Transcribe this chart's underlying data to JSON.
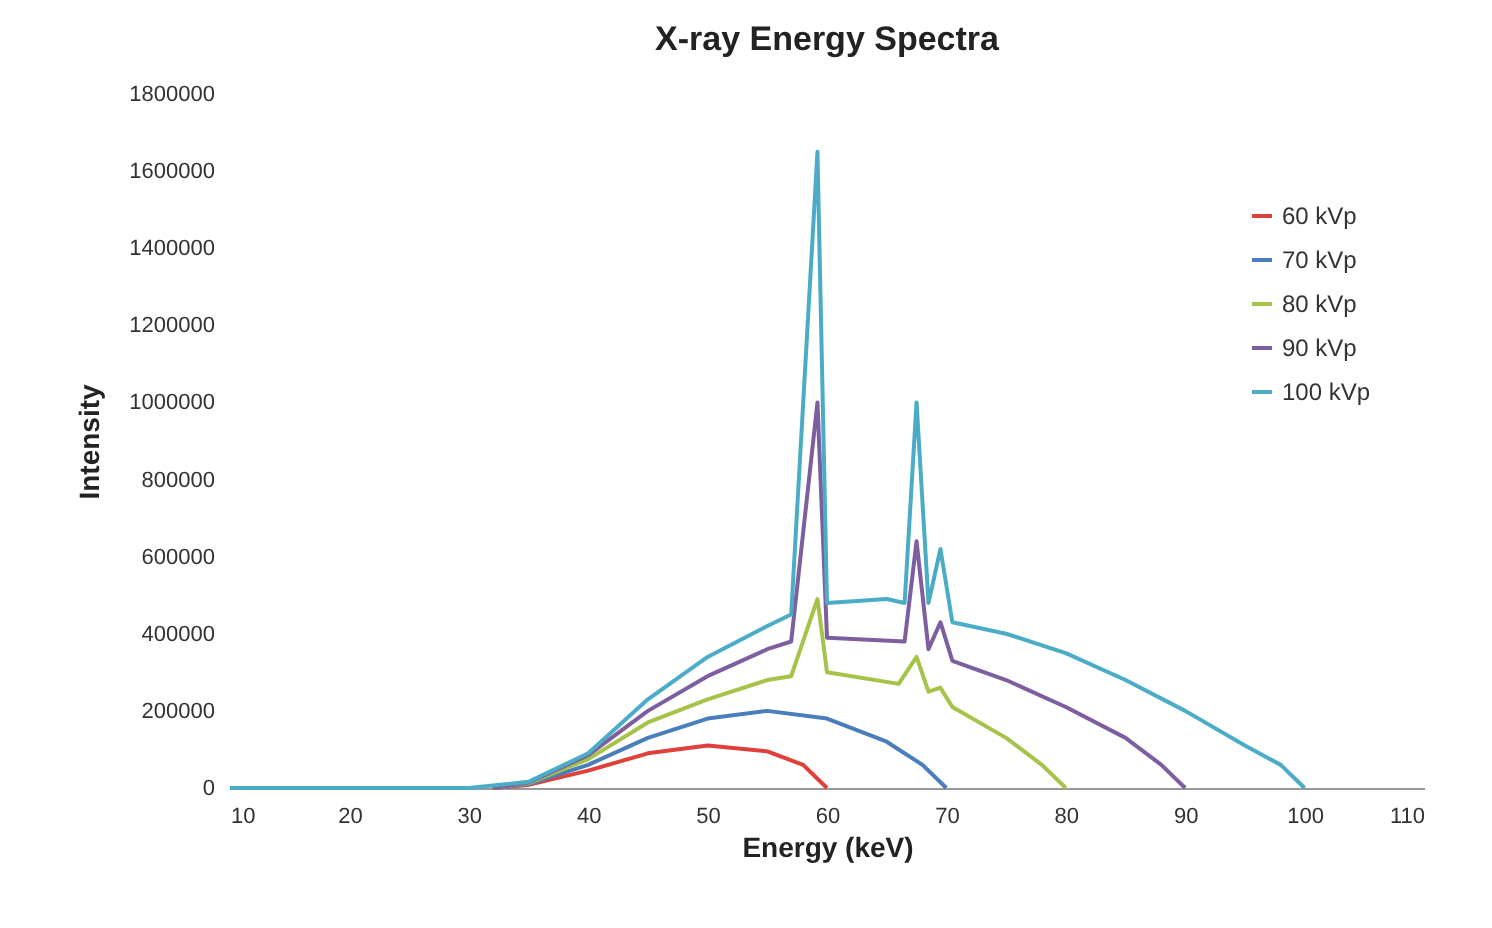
{
  "chart_data": {
    "type": "line",
    "title": "X-ray Energy Spectra",
    "xlabel": "Energy (keV)",
    "ylabel": "Intensity",
    "xlim": [
      10,
      110
    ],
    "xticks": [
      10,
      20,
      30,
      40,
      50,
      60,
      70,
      80,
      90,
      100,
      110
    ],
    "ylim": [
      0,
      1800000
    ],
    "yticks": [
      0,
      200000,
      400000,
      600000,
      800000,
      1000000,
      1200000,
      1400000,
      1600000,
      1800000
    ],
    "grid": false,
    "legend": "right",
    "marker": "none",
    "line_style": "solid",
    "series": [
      {
        "name": "60 kVp",
        "color": "#e0403a",
        "x": [
          32,
          35,
          40,
          45,
          50,
          55,
          58,
          60
        ],
        "values": [
          0,
          8000,
          45000,
          90000,
          110000,
          95000,
          60000,
          0
        ]
      },
      {
        "name": "70 kVp",
        "color": "#4a7ebb",
        "x": [
          32,
          35,
          40,
          45,
          50,
          55,
          60,
          65,
          68,
          70
        ],
        "values": [
          0,
          10000,
          60000,
          130000,
          180000,
          200000,
          180000,
          120000,
          60000,
          0
        ]
      },
      {
        "name": "80 kVp",
        "color": "#a5c249",
        "x": [
          32,
          35,
          40,
          45,
          50,
          55,
          57,
          59.2,
          60,
          66,
          67.5,
          68.5,
          69.5,
          70.5,
          75,
          78,
          80
        ],
        "values": [
          0,
          12000,
          75000,
          170000,
          230000,
          280000,
          290000,
          490000,
          300000,
          270000,
          340000,
          250000,
          260000,
          210000,
          130000,
          60000,
          0
        ]
      },
      {
        "name": "90 kVp",
        "color": "#7d5fa0",
        "x": [
          32,
          35,
          40,
          45,
          50,
          55,
          57,
          59.2,
          60,
          66.5,
          67.5,
          68.5,
          69.5,
          70.5,
          75,
          80,
          85,
          88,
          90
        ],
        "values": [
          0,
          14000,
          85000,
          200000,
          290000,
          360000,
          380000,
          1000000,
          390000,
          380000,
          640000,
          360000,
          430000,
          330000,
          280000,
          210000,
          130000,
          60000,
          0
        ]
      },
      {
        "name": "100 kVp",
        "color": "#4bacc6",
        "x": [
          10,
          20,
          30,
          35,
          40,
          45,
          50,
          55,
          57,
          59.2,
          60,
          65,
          66.5,
          67.5,
          68.5,
          69.5,
          70.5,
          75,
          80,
          85,
          90,
          95,
          98,
          100
        ],
        "values": [
          0,
          0,
          0,
          16000,
          90000,
          230000,
          340000,
          420000,
          450000,
          1650000,
          480000,
          490000,
          480000,
          1000000,
          480000,
          620000,
          430000,
          400000,
          350000,
          280000,
          200000,
          110000,
          60000,
          0
        ]
      }
    ]
  }
}
